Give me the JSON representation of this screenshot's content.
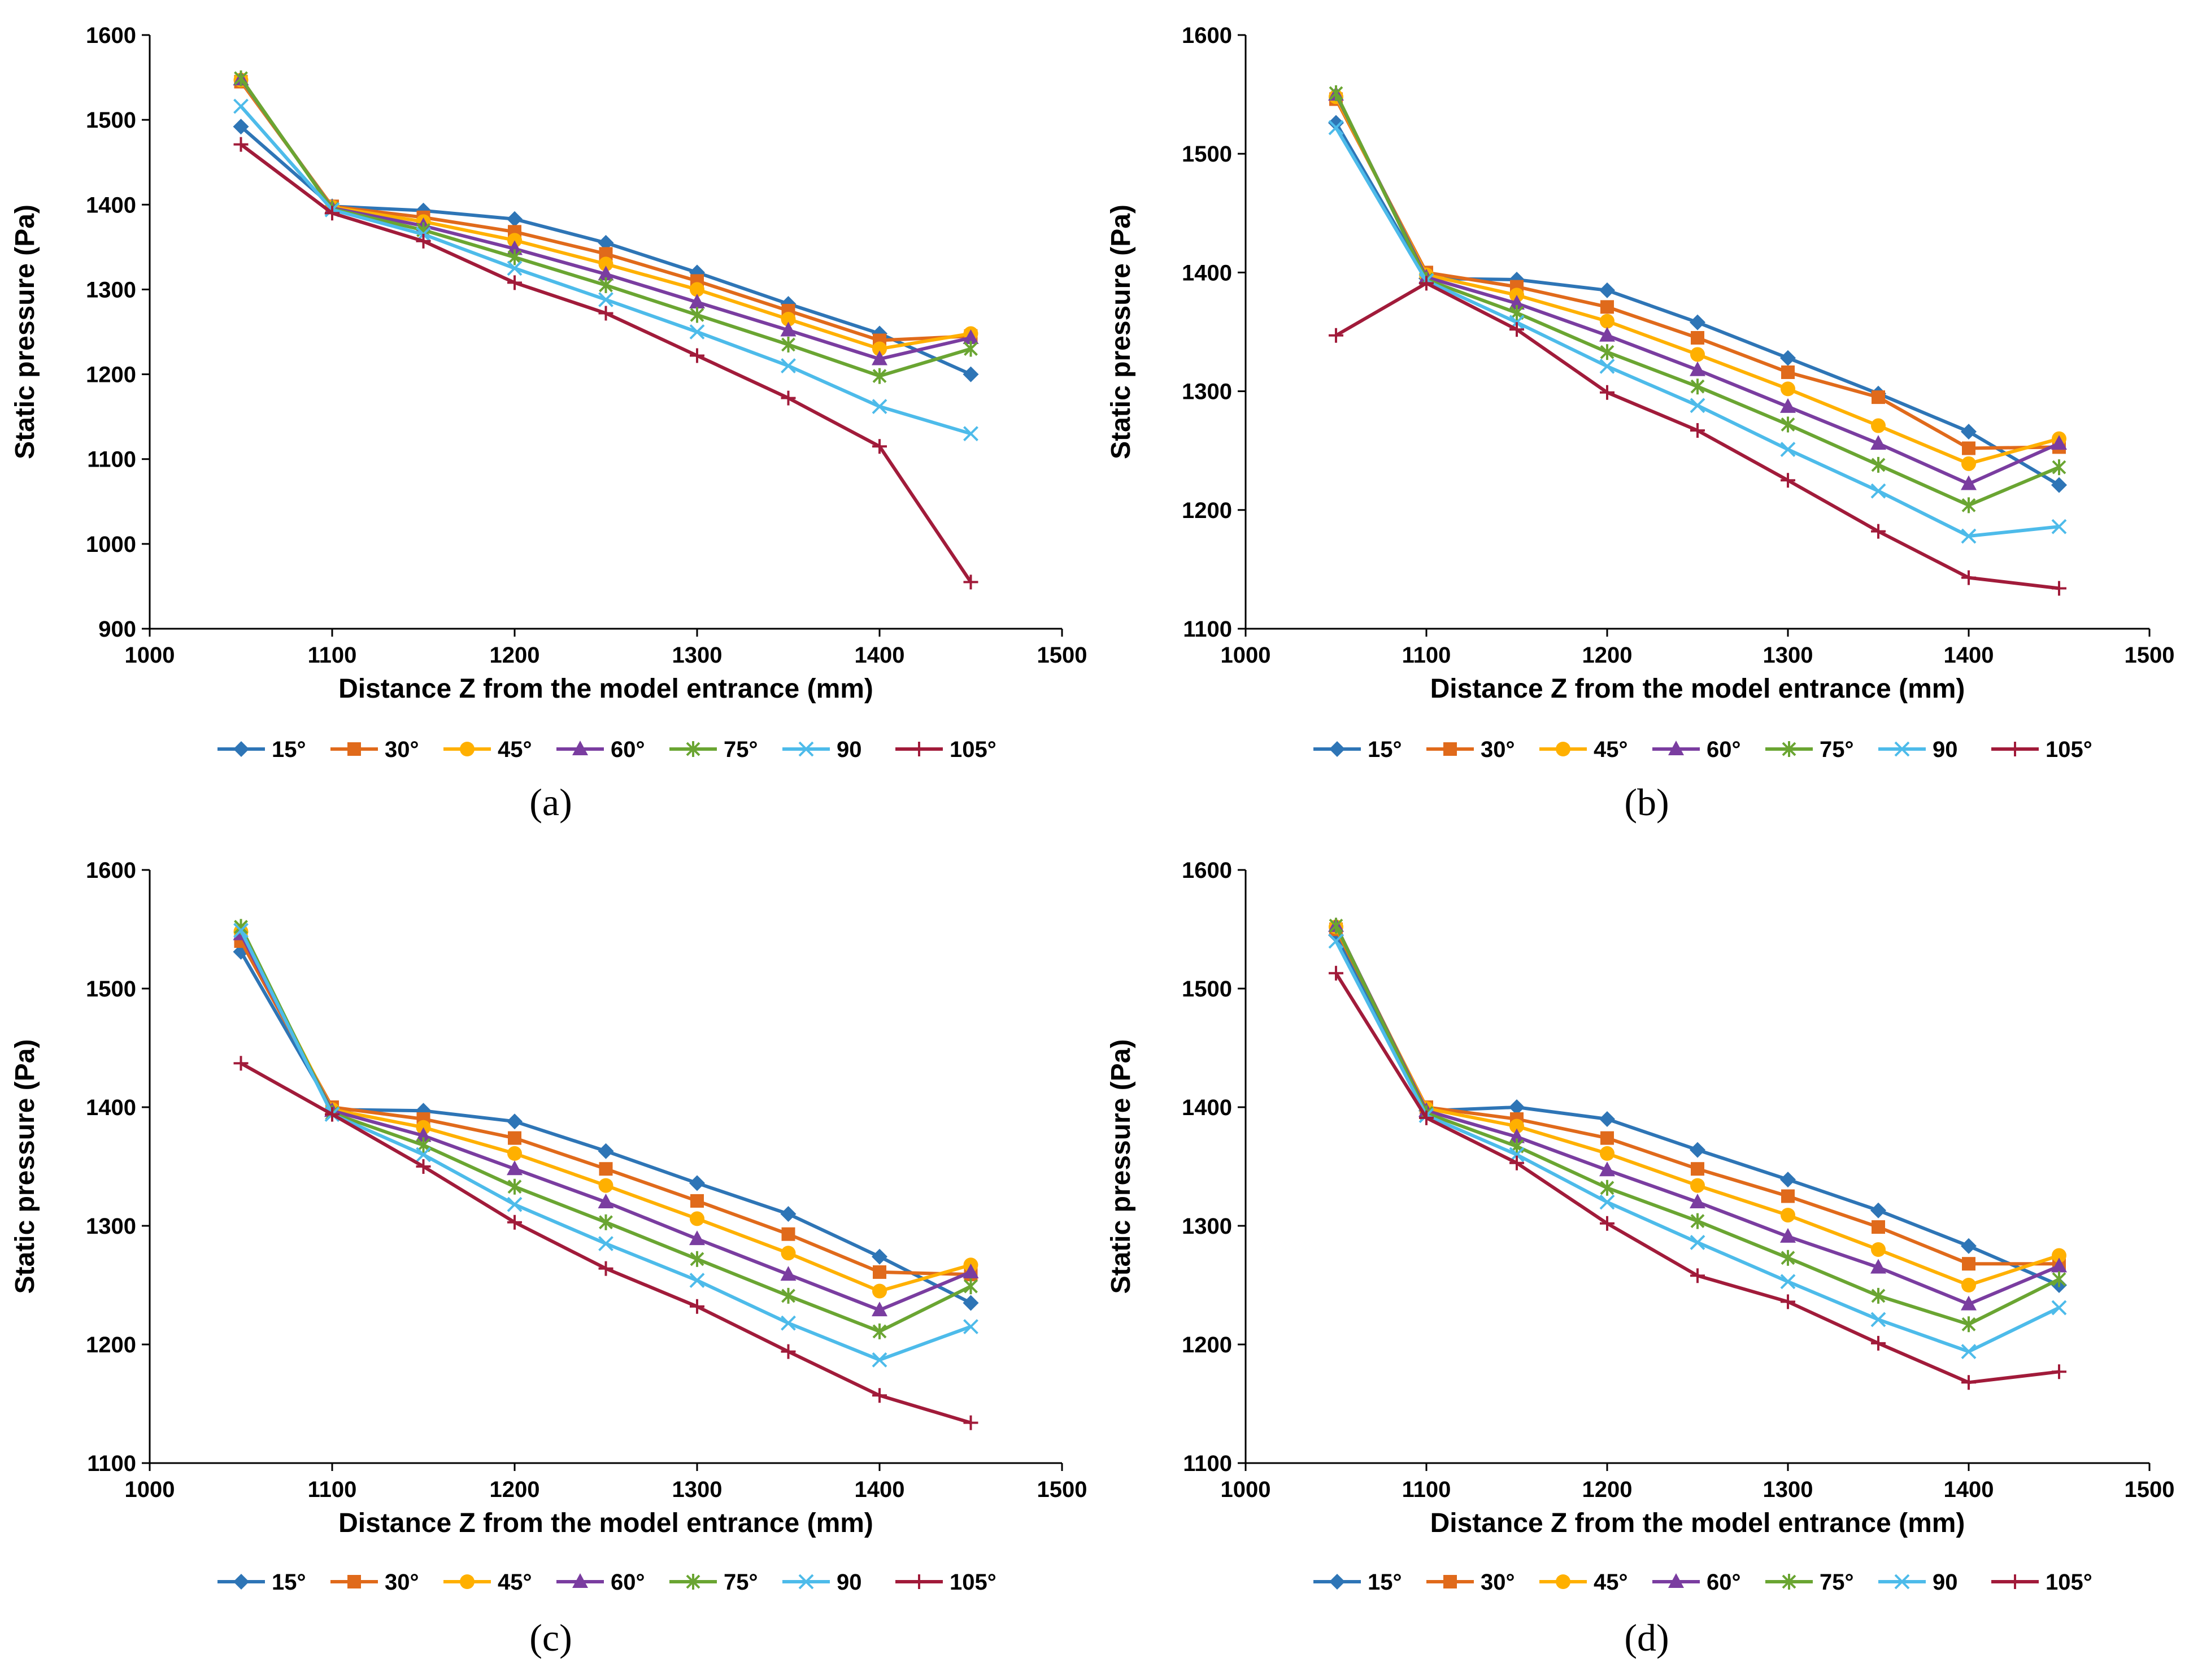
{
  "chart_data": [
    {
      "type": "line",
      "caption": "(a)",
      "xlabel": "Distance Z from the model entrance (mm)",
      "ylabel": "Static pressure (Pa)",
      "xlim": [
        1000,
        1500
      ],
      "ylim": [
        900,
        1600
      ],
      "xticks": [
        1000,
        1100,
        1200,
        1300,
        1400,
        1500
      ],
      "yticks": [
        900,
        1000,
        1100,
        1200,
        1300,
        1400,
        1500,
        1600
      ],
      "x": [
        1050,
        1100,
        1150,
        1200,
        1250,
        1300,
        1350,
        1400,
        1450
      ],
      "series": [
        {
          "name": "15°",
          "values": [
            1492,
            1398,
            1393,
            1383,
            1355,
            1320,
            1283,
            1248,
            1200
          ]
        },
        {
          "name": "30°",
          "values": [
            1545,
            1398,
            1385,
            1368,
            1342,
            1310,
            1275,
            1240,
            1245
          ]
        },
        {
          "name": "45°",
          "values": [
            1547,
            1397,
            1380,
            1358,
            1330,
            1300,
            1265,
            1230,
            1248
          ]
        },
        {
          "name": "60°",
          "values": [
            1548,
            1396,
            1375,
            1348,
            1318,
            1285,
            1252,
            1218,
            1243
          ]
        },
        {
          "name": "75°",
          "values": [
            1549,
            1395,
            1370,
            1338,
            1305,
            1270,
            1235,
            1198,
            1230
          ]
        },
        {
          "name": "90",
          "values": [
            1516,
            1394,
            1365,
            1325,
            1288,
            1250,
            1210,
            1162,
            1130
          ]
        },
        {
          "name": "105°",
          "values": [
            1471,
            1390,
            1357,
            1308,
            1272,
            1222,
            1172,
            1115,
            955
          ]
        }
      ]
    },
    {
      "type": "line",
      "caption": "(b)",
      "xlabel": "Distance Z from the model entrance (mm)",
      "ylabel": "Static pressure (Pa)",
      "xlim": [
        1000,
        1500
      ],
      "ylim": [
        1100,
        1600
      ],
      "xticks": [
        1000,
        1100,
        1200,
        1300,
        1400,
        1500
      ],
      "yticks": [
        1100,
        1200,
        1300,
        1400,
        1500,
        1600
      ],
      "x": [
        1050,
        1100,
        1150,
        1200,
        1250,
        1300,
        1350,
        1400,
        1450
      ],
      "series": [
        {
          "name": "15°",
          "values": [
            1526,
            1395,
            1394,
            1385,
            1358,
            1328,
            1298,
            1266,
            1221
          ]
        },
        {
          "name": "30°",
          "values": [
            1546,
            1400,
            1388,
            1371,
            1345,
            1316,
            1295,
            1252,
            1253
          ]
        },
        {
          "name": "45°",
          "values": [
            1548,
            1398,
            1381,
            1359,
            1331,
            1302,
            1271,
            1239,
            1260
          ]
        },
        {
          "name": "60°",
          "values": [
            1550,
            1396,
            1374,
            1347,
            1318,
            1287,
            1256,
            1222,
            1256
          ]
        },
        {
          "name": "75°",
          "values": [
            1551,
            1394,
            1366,
            1333,
            1304,
            1272,
            1238,
            1204,
            1236
          ]
        },
        {
          "name": "90",
          "values": [
            1522,
            1393,
            1358,
            1321,
            1288,
            1251,
            1216,
            1178,
            1186
          ]
        },
        {
          "name": "105°",
          "values": [
            1347,
            1391,
            1352,
            1299,
            1267,
            1225,
            1182,
            1143,
            1134
          ]
        }
      ]
    },
    {
      "type": "line",
      "caption": "(c)",
      "xlabel": "Distance Z from the model entrance (mm)",
      "ylabel": "Static pressure (Pa)",
      "xlim": [
        1000,
        1500
      ],
      "ylim": [
        1100,
        1600
      ],
      "xticks": [
        1000,
        1100,
        1200,
        1300,
        1400,
        1500
      ],
      "yticks": [
        1100,
        1200,
        1300,
        1400,
        1500,
        1600
      ],
      "x": [
        1050,
        1100,
        1150,
        1200,
        1250,
        1300,
        1350,
        1400,
        1450
      ],
      "series": [
        {
          "name": "15°",
          "values": [
            1531,
            1398,
            1397,
            1388,
            1363,
            1336,
            1310,
            1274,
            1235
          ]
        },
        {
          "name": "30°",
          "values": [
            1540,
            1400,
            1390,
            1374,
            1348,
            1321,
            1293,
            1261,
            1259
          ]
        },
        {
          "name": "45°",
          "values": [
            1548,
            1398,
            1383,
            1361,
            1334,
            1306,
            1277,
            1245,
            1267
          ]
        },
        {
          "name": "60°",
          "values": [
            1546,
            1397,
            1376,
            1348,
            1320,
            1289,
            1259,
            1229,
            1261
          ]
        },
        {
          "name": "75°",
          "values": [
            1552,
            1395,
            1368,
            1333,
            1303,
            1272,
            1241,
            1211,
            1249
          ]
        },
        {
          "name": "90",
          "values": [
            1549,
            1394,
            1360,
            1318,
            1285,
            1254,
            1218,
            1187,
            1215
          ]
        },
        {
          "name": "105°",
          "values": [
            1437,
            1394,
            1350,
            1303,
            1264,
            1232,
            1194,
            1157,
            1134
          ]
        }
      ]
    },
    {
      "type": "line",
      "caption": "(d)",
      "xlabel": "Distance Z from the model entrance (mm)",
      "ylabel": "Static pressure (Pa)",
      "xlim": [
        1000,
        1500
      ],
      "ylim": [
        1100,
        1600
      ],
      "xticks": [
        1000,
        1100,
        1200,
        1300,
        1400,
        1500
      ],
      "yticks": [
        1100,
        1200,
        1300,
        1400,
        1500,
        1600
      ],
      "x": [
        1050,
        1100,
        1150,
        1200,
        1250,
        1300,
        1350,
        1400,
        1450
      ],
      "series": [
        {
          "name": "15°",
          "values": [
            1545,
            1397,
            1400,
            1390,
            1364,
            1339,
            1313,
            1283,
            1250
          ]
        },
        {
          "name": "30°",
          "values": [
            1550,
            1400,
            1390,
            1374,
            1348,
            1325,
            1299,
            1268,
            1268
          ]
        },
        {
          "name": "45°",
          "values": [
            1552,
            1399,
            1384,
            1361,
            1334,
            1309,
            1280,
            1250,
            1275
          ]
        },
        {
          "name": "60°",
          "values": [
            1553,
            1397,
            1375,
            1347,
            1320,
            1291,
            1265,
            1234,
            1266
          ]
        },
        {
          "name": "75°",
          "values": [
            1553,
            1395,
            1367,
            1332,
            1304,
            1273,
            1241,
            1217,
            1255
          ]
        },
        {
          "name": "90",
          "values": [
            1540,
            1393,
            1360,
            1320,
            1286,
            1253,
            1221,
            1194,
            1231
          ]
        },
        {
          "name": "105°",
          "values": [
            1513,
            1391,
            1353,
            1302,
            1258,
            1236,
            1201,
            1168,
            1177
          ]
        }
      ]
    }
  ],
  "series_styles": [
    {
      "color": "#2E75B6",
      "marker": "diamond"
    },
    {
      "color": "#E06A1B",
      "marker": "square"
    },
    {
      "color": "#FFB000",
      "marker": "circle"
    },
    {
      "color": "#7A3DA0",
      "marker": "triangle"
    },
    {
      "color": "#6AA532",
      "marker": "asterisk"
    },
    {
      "color": "#4DBBEA",
      "marker": "x"
    },
    {
      "color": "#A11B3A",
      "marker": "plus"
    }
  ]
}
